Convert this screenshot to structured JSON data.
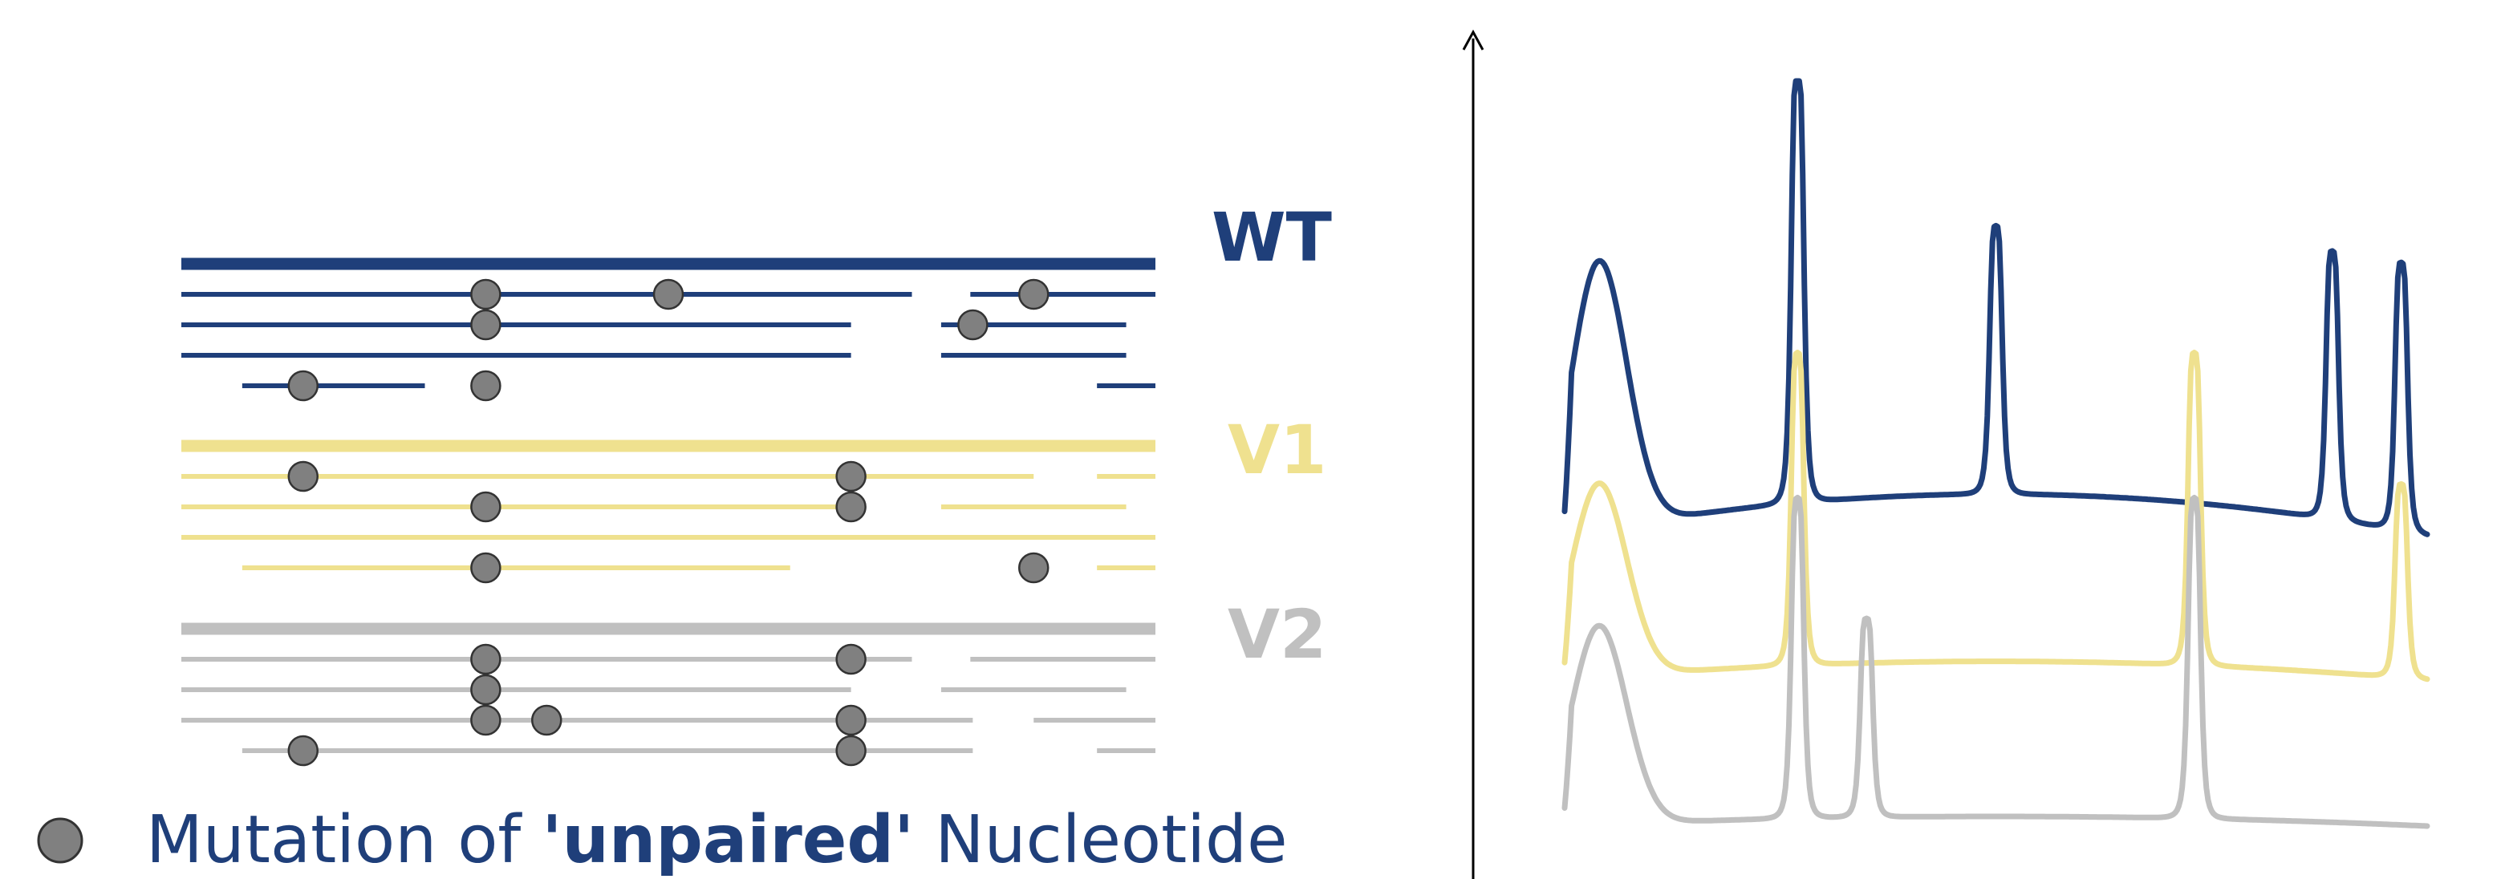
{
  "colors": {
    "wt": "#1f3f7a",
    "v1": "#efe18f",
    "v2": "#c0c0c0",
    "mutation": "#808080",
    "axis": "#000000"
  },
  "groups": [
    {
      "id": "wt",
      "label": "WT",
      "color": "#1f3f7a",
      "reads": [
        {
          "segments": [
            [
              0,
              1
            ]
          ],
          "mutations": [],
          "reference": true
        },
        {
          "segments": [
            [
              0,
              0.75
            ],
            [
              0.81,
              1
            ]
          ],
          "mutations": [
            0.3125,
            0.5,
            0.875
          ]
        },
        {
          "segments": [
            [
              0,
              0.6875
            ],
            [
              0.78,
              0.97
            ]
          ],
          "mutations": [
            0.3125,
            0.8125
          ]
        },
        {
          "segments": [
            [
              0,
              0.6875
            ],
            [
              0.78,
              0.97
            ]
          ],
          "mutations": []
        },
        {
          "segments": [
            [
              0.0625,
              0.25
            ],
            [
              0.94,
              1
            ]
          ],
          "mutations": [
            0.125,
            0.3125
          ]
        }
      ]
    },
    {
      "id": "v1",
      "label": "V1",
      "color": "#efe18f",
      "reads": [
        {
          "segments": [
            [
              0,
              1
            ]
          ],
          "mutations": [],
          "reference": true
        },
        {
          "segments": [
            [
              0,
              0.875
            ],
            [
              0.94,
              1
            ]
          ],
          "mutations": [
            0.125,
            0.6875
          ]
        },
        {
          "segments": [
            [
              0,
              0.6875
            ],
            [
              0.78,
              0.97
            ]
          ],
          "mutations": [
            0.3125,
            0.6875
          ]
        },
        {
          "segments": [
            [
              0,
              1
            ]
          ],
          "mutations": []
        },
        {
          "segments": [
            [
              0.0625,
              0.625
            ],
            [
              0.94,
              1
            ]
          ],
          "mutations": [
            0.3125,
            0.875
          ]
        }
      ]
    },
    {
      "id": "v2",
      "label": "V2",
      "color": "#c0c0c0",
      "reads": [
        {
          "segments": [
            [
              0,
              1
            ]
          ],
          "mutations": [],
          "reference": true
        },
        {
          "segments": [
            [
              0,
              0.75
            ],
            [
              0.81,
              1
            ]
          ],
          "mutations": [
            0.3125,
            0.6875
          ]
        },
        {
          "segments": [
            [
              0,
              0.6875
            ],
            [
              0.78,
              0.97
            ]
          ],
          "mutations": [
            0.3125
          ]
        },
        {
          "segments": [
            [
              0,
              0.8125
            ],
            [
              0.875,
              1
            ]
          ],
          "mutations": [
            0.3125,
            0.375,
            0.6875
          ]
        },
        {
          "segments": [
            [
              0.0625,
              0.8125
            ],
            [
              0.94,
              1
            ]
          ],
          "mutations": [
            0.125,
            0.6875
          ]
        }
      ]
    }
  ],
  "legend": {
    "text_before": "Mutation of ",
    "text_bold": "'unpaired'",
    "text_after": " Nucleotide"
  },
  "profiles": [
    {
      "id": "wt",
      "color": "#1f3f7a",
      "baseline": 0.16,
      "peaks": [
        {
          "x": 0.04,
          "height": 0.62,
          "shape": "broad"
        },
        {
          "x": 0.27,
          "height": 1.0,
          "shape": "sharp"
        },
        {
          "x": 0.5,
          "height": 0.62,
          "shape": "sharp"
        },
        {
          "x": 0.89,
          "height": 0.62,
          "shape": "sharp"
        },
        {
          "x": 0.97,
          "height": 0.62,
          "shape": "sharp"
        }
      ]
    },
    {
      "id": "v1",
      "color": "#efe18f",
      "baseline": 0.1,
      "peaks": [
        {
          "x": 0.04,
          "height": 0.62,
          "shape": "broad"
        },
        {
          "x": 0.27,
          "height": 1.0,
          "shape": "sharp"
        },
        {
          "x": 0.73,
          "height": 1.0,
          "shape": "sharp"
        },
        {
          "x": 0.97,
          "height": 0.62,
          "shape": "sharp"
        }
      ]
    },
    {
      "id": "v2",
      "color": "#c0c0c0",
      "baseline": 0.05,
      "peaks": [
        {
          "x": 0.04,
          "height": 0.62,
          "shape": "broad"
        },
        {
          "x": 0.27,
          "height": 1.0,
          "shape": "sharp"
        },
        {
          "x": 0.35,
          "height": 0.62,
          "shape": "sharp"
        },
        {
          "x": 0.73,
          "height": 1.0,
          "shape": "sharp"
        }
      ]
    }
  ]
}
